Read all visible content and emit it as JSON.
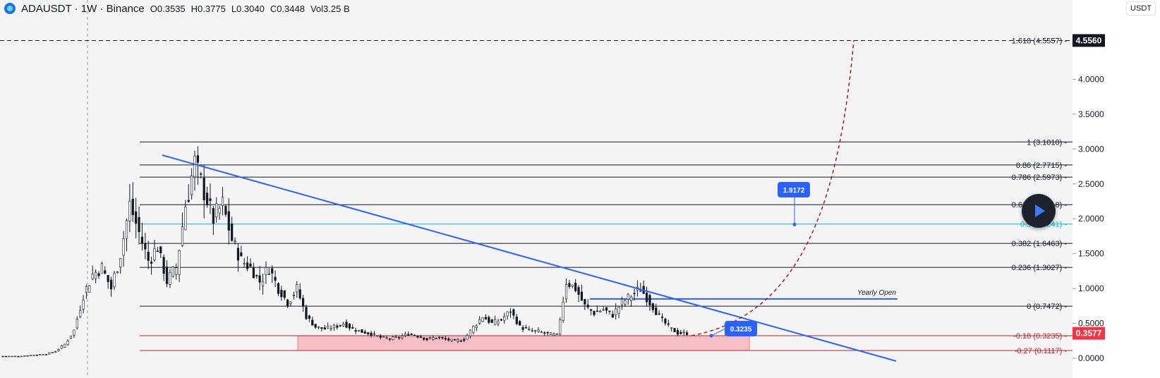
{
  "header": {
    "symbol": "ADAUSDT · 1W · Binance",
    "open": "O0.3535",
    "high": "H0.3775",
    "low": "L0.3040",
    "close": "C0.3448",
    "volume": "Vol3.25 B"
  },
  "quote_currency": "USDT",
  "colors": {
    "price_axis_tag_dark": "#131722",
    "current_price_tag": "#f23645",
    "trendline": "#2962ff",
    "fib_lines": "#131722",
    "fib_cyan": "#00bcd4",
    "fib_red": "#b22833",
    "zone_fill": "#f7b9c0",
    "projection": "#9c1c2a",
    "chart_bg": "#f4f4f4"
  },
  "chart_data": {
    "type": "candlestick",
    "y_axis": {
      "min": 0,
      "max": 4.6,
      "ticks": [
        "0.0000",
        "0.5000",
        "1.0000",
        "1.5000",
        "2.0000",
        "2.5000",
        "3.0000",
        "3.5000",
        "4.0000"
      ],
      "tick_values": [
        0,
        0.5,
        1,
        1.5,
        2,
        2.5,
        3,
        3.5,
        4
      ]
    },
    "price_tags": [
      {
        "label": "4.5560",
        "value": 4.556,
        "style": "dark"
      },
      {
        "label": "0.3577",
        "value": 0.3577,
        "style": "red"
      }
    ],
    "fib_levels": [
      {
        "ratio": 1.618,
        "label": "1.618 (4.5557)",
        "value": 4.5557,
        "style": "dashed"
      },
      {
        "ratio": 1,
        "label": "1 (3.1010)",
        "value": 3.101,
        "style": "solid"
      },
      {
        "ratio": 0.86,
        "label": "0.86 (2.7715)",
        "value": 2.7715,
        "style": "solid"
      },
      {
        "ratio": 0.786,
        "label": "0.786 (2.5973)",
        "value": 2.5973,
        "style": "solid"
      },
      {
        "ratio": 0.618,
        "label": "0.618 (2.2018)",
        "value": 2.2018,
        "style": "solid"
      },
      {
        "ratio": 0.5,
        "label": "0.5 (1.9241)",
        "value": 1.9241,
        "style": "cyan"
      },
      {
        "ratio": 0.382,
        "label": "0.382 (1.6463)",
        "value": 1.6463,
        "style": "solid"
      },
      {
        "ratio": 0.236,
        "label": "0.236 (1.3027)",
        "value": 1.3027,
        "style": "solid"
      },
      {
        "ratio": 0,
        "label": "0 (0.7472)",
        "value": 0.7472,
        "style": "solid"
      },
      {
        "ratio": -0.18,
        "label": "-0.18 (0.3235)",
        "value": 0.3235,
        "style": "red"
      },
      {
        "ratio": -0.27,
        "label": "-0.27 (0.1117)",
        "value": 0.1117,
        "style": "red"
      }
    ],
    "yearly_open": {
      "label": "Yearly Open",
      "value": 0.85
    },
    "callouts": [
      {
        "label": "1.9172",
        "value": 1.9172
      },
      {
        "label": "0.3235",
        "value": 0.3235
      }
    ],
    "candles_close_path": [
      0.03,
      0.03,
      0.04,
      0.05,
      0.06,
      0.1,
      0.2,
      0.4,
      0.9,
      1.2,
      1.3,
      1.0,
      1.5,
      2.2,
      1.8,
      1.4,
      1.6,
      1.1,
      1.3,
      2.2,
      2.8,
      2.4,
      2.0,
      2.2,
      1.7,
      1.4,
      1.3,
      1.1,
      1.3,
      1.0,
      0.8,
      1.0,
      0.6,
      0.45,
      0.42,
      0.45,
      0.5,
      0.42,
      0.38,
      0.35,
      0.3,
      0.28,
      0.3,
      0.35,
      0.32,
      0.27,
      0.3,
      0.27,
      0.25,
      0.27,
      0.45,
      0.6,
      0.5,
      0.55,
      0.68,
      0.45,
      0.4,
      0.38,
      0.35,
      0.33,
      1.1,
      1.0,
      0.75,
      0.65,
      0.7,
      0.62,
      0.8,
      0.9,
      1.0,
      0.8,
      0.6,
      0.45,
      0.36,
      0.3577
    ]
  }
}
